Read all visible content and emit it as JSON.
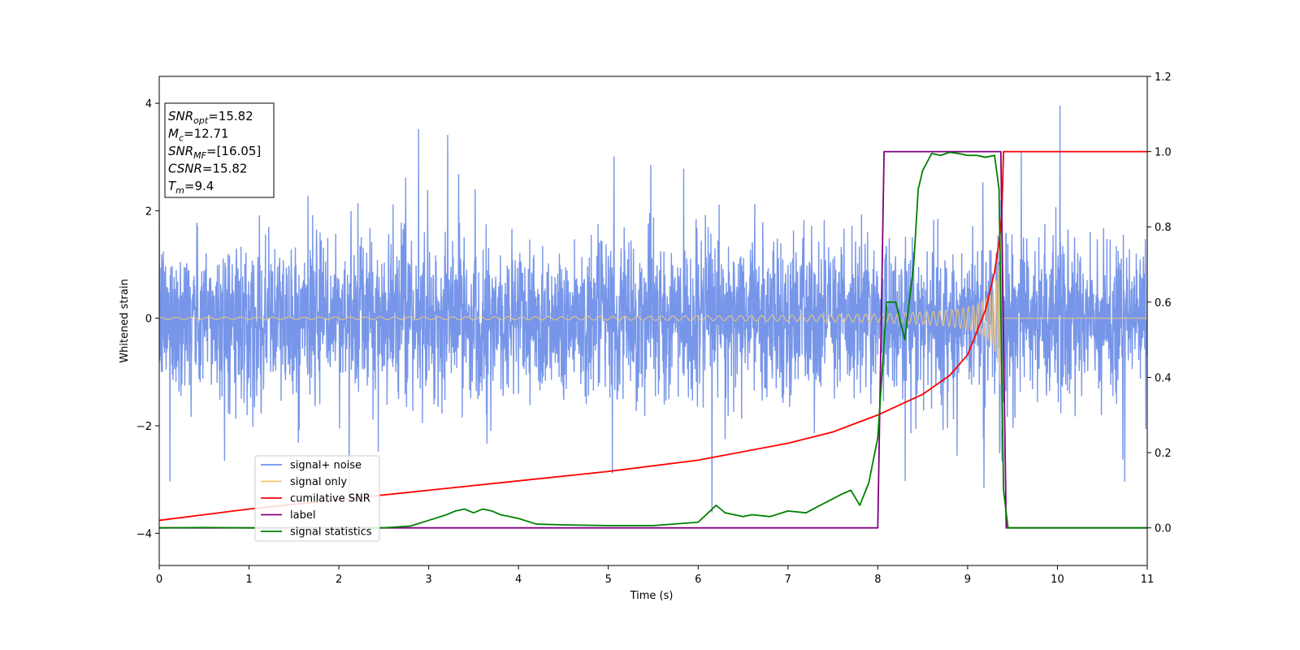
{
  "chart_data": {
    "type": "line",
    "xlabel": "Time (s)",
    "ylabel": "Whitened strain",
    "xlim": [
      0,
      11
    ],
    "ylim_left": [
      -4.6,
      4.5
    ],
    "ylim_right": [
      -0.1,
      1.2
    ],
    "x_ticks": [
      "0",
      "1",
      "2",
      "3",
      "4",
      "5",
      "6",
      "7",
      "8",
      "9",
      "10",
      "11"
    ],
    "y_ticks_left": [
      "−4",
      "−2",
      "0",
      "2",
      "4"
    ],
    "y_ticks_right": [
      "0.0",
      "0.2",
      "0.4",
      "0.6",
      "0.8",
      "1.0",
      "1.2"
    ],
    "info_box": {
      "lines": [
        {
          "name": "SNR",
          "sub": "opt",
          "value": "=15.82"
        },
        {
          "name": "M",
          "sub": "c",
          "value": "=12.71"
        },
        {
          "name": "SNR",
          "sub": "MF",
          "value": "=[16.05]"
        },
        {
          "name": "CSNR",
          "sub": "",
          "value": "=15.82"
        },
        {
          "name": "T",
          "sub": "m",
          "value": "=9.4"
        }
      ]
    },
    "legend": {
      "placement": "lower-left",
      "entries": [
        {
          "label": "signal+ noise",
          "color": "#7090e8"
        },
        {
          "label": "signal only",
          "color": "#f5c878"
        },
        {
          "label": "cumilative SNR",
          "color": "#ff0000"
        },
        {
          "label": "label",
          "color": "#800080"
        },
        {
          "label": "signal statistics",
          "color": "#008000"
        }
      ]
    },
    "series": [
      {
        "name": "signal+ noise",
        "axis": "left",
        "color": "#7090e8",
        "description": "whitened noise plus signal, amplitude ~±1.5 with spikes to ~±3.8, from t=0 to t=11"
      },
      {
        "name": "signal only",
        "axis": "left",
        "color": "#f5c878",
        "merger_time": 9.4,
        "amplitude_start": 0.02,
        "amplitude_peak": 2.3
      },
      {
        "name": "cumilative SNR",
        "axis": "right",
        "color": "#ff0000",
        "x": [
          0,
          1,
          2,
          3,
          4,
          5,
          6,
          7,
          7.5,
          8,
          8.5,
          8.8,
          9.0,
          9.2,
          9.3,
          9.35,
          9.38,
          9.4,
          11
        ],
        "y": [
          0.02,
          0.05,
          0.075,
          0.1,
          0.125,
          0.15,
          0.18,
          0.225,
          0.255,
          0.3,
          0.355,
          0.405,
          0.46,
          0.58,
          0.68,
          0.76,
          0.83,
          1.0,
          1.0
        ]
      },
      {
        "name": "label",
        "axis": "right",
        "color": "#800080",
        "x": [
          0,
          8.0,
          8.07,
          9.37,
          9.43,
          11
        ],
        "y": [
          0.0,
          0.0,
          1.0,
          1.0,
          0.0,
          0.0
        ]
      },
      {
        "name": "signal statistics",
        "axis": "right",
        "color": "#008000",
        "x": [
          0,
          0.5,
          1,
          1.5,
          2,
          2.5,
          2.8,
          3.0,
          3.2,
          3.3,
          3.4,
          3.5,
          3.6,
          3.7,
          3.8,
          3.9,
          4.0,
          4.2,
          4.5,
          5.0,
          5.5,
          6.0,
          6.2,
          6.3,
          6.5,
          6.6,
          6.8,
          7.0,
          7.2,
          7.4,
          7.6,
          7.7,
          7.8,
          7.9,
          8.0,
          8.1,
          8.2,
          8.3,
          8.4,
          8.45,
          8.5,
          8.6,
          8.7,
          8.8,
          8.9,
          9.0,
          9.1,
          9.2,
          9.3,
          9.35,
          9.4,
          9.45,
          11
        ],
        "y": [
          0.0,
          0.001,
          0.0,
          0.0,
          0.0,
          0.0,
          0.005,
          0.02,
          0.035,
          0.045,
          0.05,
          0.04,
          0.05,
          0.045,
          0.035,
          0.03,
          0.025,
          0.01,
          0.008,
          0.006,
          0.006,
          0.015,
          0.06,
          0.04,
          0.03,
          0.035,
          0.03,
          0.045,
          0.04,
          0.065,
          0.09,
          0.1,
          0.06,
          0.12,
          0.24,
          0.6,
          0.6,
          0.5,
          0.7,
          0.9,
          0.95,
          0.995,
          0.99,
          0.998,
          0.995,
          0.99,
          0.99,
          0.985,
          0.99,
          0.9,
          0.1,
          0.0,
          0.0
        ]
      }
    ]
  }
}
